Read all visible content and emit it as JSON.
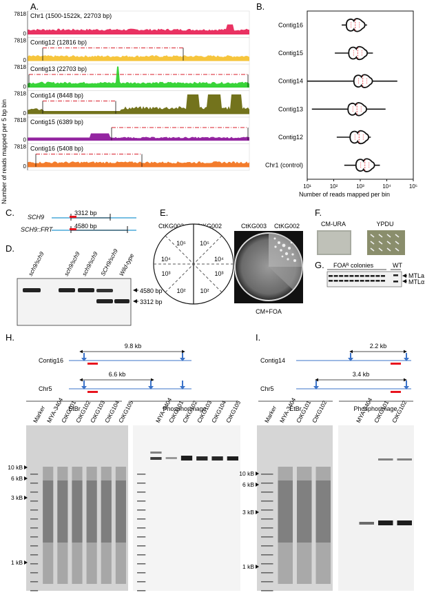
{
  "panels": {
    "A": "A.",
    "B": "B.",
    "C": "C.",
    "D": "D.",
    "E": "E.",
    "F": "F.",
    "G": "G.",
    "H": "H.",
    "I": "I."
  },
  "colors": {
    "chr1": "#e8275a",
    "contig12": "#f6c233",
    "contig13": "#2ed22e",
    "contig14": "#6b6b10",
    "contig15": "#8e1a9c",
    "contig16": "#f27521",
    "dashline": "#d81e2a",
    "blue_arrow": "#3b73c9",
    "red_bar": "#e8141e"
  },
  "panelA": {
    "ylabel": "Number of reads mapped per 5 bp bin",
    "ymax": "7818",
    "ymin": "0",
    "tracks": [
      {
        "label": "Chr1 (1500-1522k, 22703 bp)",
        "color_key": "chr1"
      },
      {
        "label": "Contig12 (12816 bp)",
        "color_key": "contig12"
      },
      {
        "label": "Contig13 (22703 bp)",
        "color_key": "contig13"
      },
      {
        "label": "Contig14 (8448 bp)",
        "color_key": "contig14"
      },
      {
        "label": "Contig15 (6389 bp)",
        "color_key": "contig15"
      },
      {
        "label": "Contig16 (5408 bp)",
        "color_key": "contig16"
      }
    ]
  },
  "chart_data": {
    "type": "violin",
    "categories": [
      "Contig16",
      "Contig15",
      "Contig14",
      "Contig13",
      "Contig12",
      "Chr1 (control)"
    ],
    "xlabel": "Number of reads mapped per bin",
    "xscale": "log",
    "xlim": [
      10,
      100000
    ],
    "xticks": [
      "10¹",
      "10²",
      "10³",
      "10⁴",
      "10⁵"
    ],
    "medians": [
      650,
      800,
      1250,
      750,
      900,
      1500
    ],
    "whisker_low": [
      200,
      110,
      10,
      15,
      130,
      250
    ],
    "whisker_high": [
      1800,
      3000,
      25000,
      9000,
      2500,
      5500
    ]
  },
  "panelC": {
    "row1": "SCH9",
    "row2": "SCH9::FRT",
    "size1": "3312 bp",
    "size2": "4580 bp"
  },
  "panelD": {
    "lanes": [
      "sch9/sch9",
      "sch9/sch9",
      "sch9/sch9",
      "SCH9/sch9",
      "Wild-type"
    ],
    "band1": "4580 bp",
    "band2": "3312 bp"
  },
  "panelE": {
    "left": "CtKG003",
    "right": "CtKG002",
    "plate_left": "CtKG003",
    "plate_right": "CtKG002",
    "sectors": [
      "10⁵",
      "10⁴",
      "10³",
      "10²",
      "10⁵",
      "10⁴",
      "10³",
      "10²"
    ],
    "caption": "CM+FOA"
  },
  "panelF": {
    "left": "CM-URA",
    "right": "YPDU"
  },
  "panelG": {
    "header": "FOAᴿ colonies",
    "wt": "WT",
    "band1": "MTLa",
    "band2": "MTLα"
  },
  "panelH": {
    "contig": "Contig16",
    "chr": "Chr5",
    "dist1": "9.8 kb",
    "dist2": "6.6 kb",
    "stain1": "EtBr",
    "stain2": "Phosphorimage",
    "lanes1": [
      "Marker",
      "MYA-3404",
      "CtKG101",
      "CtKG102",
      "CtKG103",
      "CtKG104",
      "CtKG105"
    ],
    "lanes2": [
      "MYA-3404",
      "CtKG101",
      "CtKG102",
      "CtKG103",
      "CtKG104",
      "CtKG105"
    ],
    "markers": [
      "10 kB",
      "6 kB",
      "3 kB",
      "1 kB"
    ]
  },
  "panelI": {
    "contig": "Contig14",
    "chr": "Chr5",
    "dist1": "2.2 kb",
    "dist2": "3.4 kb",
    "stain1": "EtBr",
    "stain2": "Phosphorimage",
    "lanes1": [
      "Marker",
      "MYA-3404",
      "CtKG101",
      "CtKG102"
    ],
    "lanes2": [
      "MYA-3404",
      "CtKG101",
      "CtKG102"
    ],
    "markers": [
      "10 kB",
      "6 kB",
      "3 kB",
      "1 kB"
    ]
  }
}
